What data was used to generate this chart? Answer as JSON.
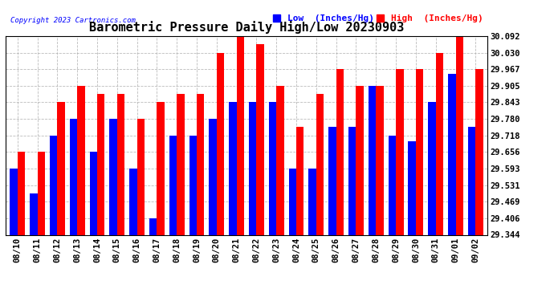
{
  "title": "Barometric Pressure Daily High/Low 20230903",
  "copyright": "Copyright 2023 Cartronics.com",
  "legend_low": "Low  (Inches/Hg)",
  "legend_high": "High  (Inches/Hg)",
  "dates": [
    "08/10",
    "08/11",
    "08/12",
    "08/13",
    "08/14",
    "08/15",
    "08/16",
    "08/17",
    "08/18",
    "08/19",
    "08/20",
    "08/21",
    "08/22",
    "08/23",
    "08/24",
    "08/25",
    "08/26",
    "08/27",
    "08/28",
    "08/29",
    "08/30",
    "08/31",
    "09/01",
    "09/02"
  ],
  "low": [
    29.594,
    29.5,
    29.718,
    29.78,
    29.656,
    29.78,
    29.594,
    29.406,
    29.718,
    29.718,
    29.78,
    29.843,
    29.843,
    29.843,
    29.594,
    29.594,
    29.75,
    29.75,
    29.905,
    29.718,
    29.695,
    29.843,
    29.95,
    29.75
  ],
  "high": [
    29.656,
    29.656,
    29.843,
    29.905,
    29.874,
    29.874,
    29.78,
    29.843,
    29.874,
    29.874,
    30.03,
    30.092,
    30.061,
    29.905,
    29.75,
    29.874,
    29.967,
    29.905,
    29.905,
    29.967,
    29.967,
    30.03,
    30.092,
    29.967
  ],
  "ymin": 29.344,
  "ymax": 30.092,
  "yticks": [
    29.344,
    29.406,
    29.469,
    29.531,
    29.593,
    29.656,
    29.718,
    29.78,
    29.843,
    29.905,
    29.967,
    30.03,
    30.092
  ],
  "bar_width": 0.38,
  "low_color": "#0000ff",
  "high_color": "#ff0000",
  "background_color": "#ffffff",
  "grid_color": "#aaaaaa",
  "title_fontsize": 11,
  "tick_fontsize": 7.5
}
